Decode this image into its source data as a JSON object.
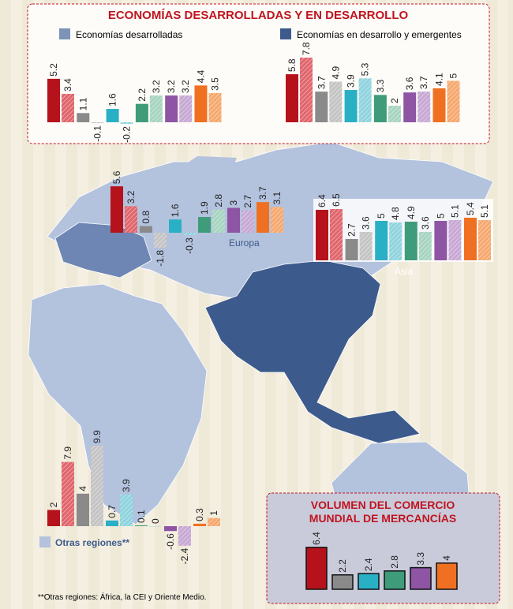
{
  "chart_data": [
    {
      "type": "bar",
      "title": "ECONOMÍAS DESARROLLADAS Y EN DESARROLLO",
      "series": [
        {
          "name": "Economías desarrolladas",
          "color": "#7d93b8",
          "values": [
            5.2,
            3.4,
            1.1,
            -0.1,
            1.6,
            -0.2,
            2.2,
            3.2,
            3.2,
            3.2,
            4.4,
            3.5
          ]
        },
        {
          "name": "Economías en desarrollo y emergentes",
          "color": "#3d5a8c",
          "values": [
            5.8,
            7.8,
            3.7,
            4.9,
            3.9,
            5.3,
            3.3,
            2,
            3.6,
            3.7,
            4.1,
            5
          ]
        }
      ],
      "bar_colors": [
        "#b5121b",
        "#e0656c",
        "#8a8a8a",
        "#c4c4c4",
        "#2ab0c5",
        "#8fd3de",
        "#3f9c7a",
        "#a6d4c0",
        "#8e55a4",
        "#c7a8d4",
        "#f07022",
        "#f6a86e"
      ]
    },
    {
      "type": "bar",
      "title": "Europa",
      "values": [
        5.6,
        3.2,
        0.8,
        -1.8,
        1.6,
        -0.3,
        1.9,
        2.8,
        3,
        2.7,
        3.7,
        3.1
      ],
      "bar_colors": [
        "#b5121b",
        "#e0656c",
        "#8a8a8a",
        "#c4c4c4",
        "#2ab0c5",
        "#8fd3de",
        "#3f9c7a",
        "#a6d4c0",
        "#8e55a4",
        "#c7a8d4",
        "#f07022",
        "#f6a86e"
      ]
    },
    {
      "type": "bar",
      "title": "Asia",
      "values": [
        6.4,
        6.5,
        2.7,
        3.6,
        5,
        4.8,
        4.9,
        3.6,
        5,
        5.1,
        5.4,
        5.1
      ],
      "bar_colors": [
        "#b5121b",
        "#e0656c",
        "#8a8a8a",
        "#c4c4c4",
        "#2ab0c5",
        "#8fd3de",
        "#3f9c7a",
        "#a6d4c0",
        "#8e55a4",
        "#c7a8d4",
        "#f07022",
        "#f6a86e"
      ]
    },
    {
      "type": "bar",
      "title": "Otras regiones**",
      "color": "#b3c2dd",
      "values": [
        2,
        7.9,
        4,
        9.9,
        0.7,
        3.9,
        0.1,
        0,
        -0.6,
        -2.4,
        0.3,
        1
      ],
      "bar_colors": [
        "#b5121b",
        "#e0656c",
        "#8a8a8a",
        "#c4c4c4",
        "#2ab0c5",
        "#8fd3de",
        "#3f9c7a",
        "#a6d4c0",
        "#8e55a4",
        "#c7a8d4",
        "#f07022",
        "#f6a86e"
      ]
    },
    {
      "type": "bar",
      "title": "VOLUMEN DEL COMERCIO MUNDIAL DE MERCANCÍAS",
      "values": [
        6.4,
        2.2,
        2.4,
        2.8,
        3.3,
        4
      ],
      "bar_colors": [
        "#b5121b",
        "#8a8a8a",
        "#2ab0c5",
        "#3f9c7a",
        "#8e55a4",
        "#f07022"
      ]
    }
  ],
  "footnote": "**Otras regiones: África, la CEI y Oriente Medio."
}
